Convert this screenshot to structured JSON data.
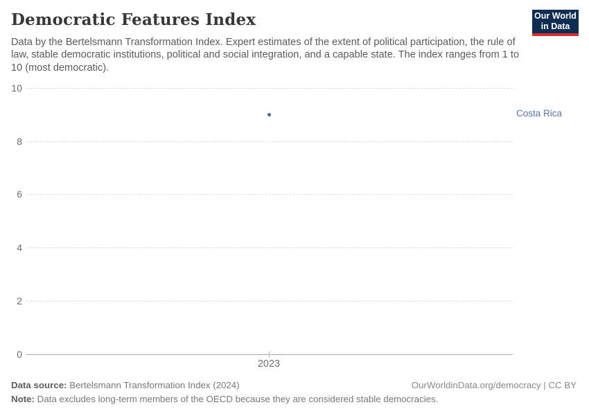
{
  "header": {
    "title": "Democratic Features Index",
    "subtitle": "Data by the Bertelsmann Transformation Index. Expert estimates of the extent of political participation, the rule of law, stable democratic institutions, political and social integration, and a capable state. The index ranges from 1 to 10 (most democratic).",
    "logo": {
      "line1": "Our World",
      "line2": "in Data",
      "bg_color": "#0d2d53",
      "accent_color": "#dc2e2e"
    }
  },
  "chart_data": {
    "type": "scatter",
    "title": "Democratic Features Index",
    "x": [
      2023
    ],
    "series": [
      {
        "name": "Costa Rica",
        "values": [
          9.0
        ],
        "color": "#4c6a9c"
      }
    ],
    "xlabel": "",
    "ylabel": "",
    "ylim": [
      0,
      10
    ],
    "yticks": [
      0,
      2,
      4,
      6,
      8,
      10
    ],
    "xticks": [
      2023
    ],
    "grid": "horizontal-dashed",
    "legend_position": "right-of-point"
  },
  "chart": {
    "y_tick_labels": [
      "10",
      "8",
      "6",
      "4",
      "2",
      "0"
    ],
    "x_tick_label": "2023",
    "point_label": "Costa Rica",
    "point_color": "#4c6a9c",
    "label_color": "#5777ad"
  },
  "footer": {
    "source_label": "Data source:",
    "source_text": " Bertelsmann Transformation Index (2024)",
    "note_label": "Note:",
    "note_text": " Data excludes long-term members of the OECD because they are considered stable democracies.",
    "link_text": "OurWorldinData.org/democracy | CC BY"
  }
}
